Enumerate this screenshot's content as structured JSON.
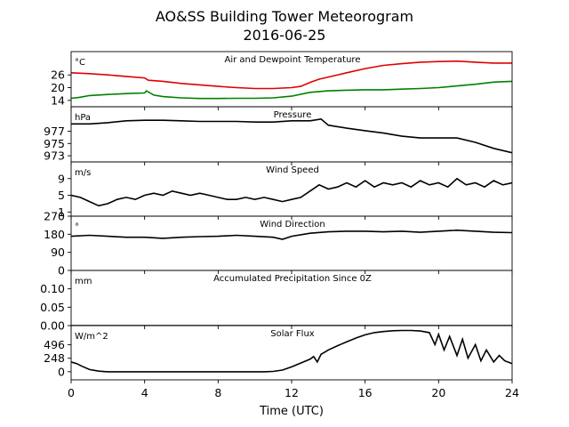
{
  "title": "AO&SS Building Tower Meteorogram",
  "subtitle": "2016-06-25",
  "chart_data": {
    "type": "line",
    "xlabel": "Time (UTC)",
    "xlim": [
      0,
      24
    ],
    "xticks": [
      0,
      4,
      8,
      12,
      16,
      20,
      24
    ],
    "panels": [
      {
        "title": "Air and Dewpoint Temperature",
        "unit": "°C",
        "ylim": [
          11,
          37
        ],
        "yticks": [
          14,
          20,
          26
        ],
        "series": [
          {
            "color": "#e00000",
            "x": [
              0,
              1,
              2,
              3,
              4,
              4.2,
              5,
              6,
              7,
              8,
              9,
              10,
              11,
              12,
              12.5,
              13,
              13.5,
              14,
              15,
              16,
              17,
              18,
              19,
              20,
              21,
              22,
              23,
              24
            ],
            "y": [
              27,
              26.6,
              26,
              25.3,
              24.6,
              23.5,
              23,
              22,
              21.3,
              20.6,
              20,
              19.6,
              19.6,
              20,
              20.6,
              22.5,
              24,
              25,
              27,
              29,
              30.5,
              31.3,
              32,
              32.3,
              32.5,
              32,
              31.6,
              31.6
            ]
          },
          {
            "color": "#008000",
            "x": [
              0,
              0.5,
              1,
              2,
              3,
              4,
              4.1,
              4.5,
              5,
              6,
              7,
              8,
              9,
              10,
              11,
              12,
              13,
              14,
              15,
              16,
              17,
              18,
              19,
              20,
              21,
              22,
              23,
              24
            ],
            "y": [
              15,
              15.5,
              16.3,
              16.8,
              17.2,
              17.5,
              18.5,
              16.5,
              15.8,
              15.2,
              14.9,
              14.9,
              15,
              15,
              15.2,
              16,
              17.8,
              18.5,
              18.8,
              19,
              19,
              19.3,
              19.6,
              20,
              20.8,
              21.6,
              22.6,
              23
            ]
          }
        ]
      },
      {
        "title": "Pressure",
        "unit": "hPa",
        "ylim": [
          972,
          981
        ],
        "yticks": [
          973,
          975,
          977
        ],
        "series": [
          {
            "color": "#000000",
            "x": [
              0,
              1,
              2,
              3,
              4,
              5,
              6,
              7,
              8,
              9,
              10,
              11,
              12,
              13,
              13.6,
              14,
              15,
              16,
              17,
              18,
              19,
              20,
              21,
              22,
              23,
              24
            ],
            "y": [
              978.2,
              978.2,
              978.4,
              978.7,
              978.8,
              978.8,
              978.7,
              978.6,
              978.6,
              978.6,
              978.5,
              978.5,
              978.7,
              978.7,
              979,
              978,
              977.5,
              977.1,
              976.7,
              976.2,
              975.9,
              975.9,
              975.9,
              975.2,
              974.2,
              973.5
            ]
          }
        ]
      },
      {
        "title": "Wind Speed",
        "unit": "m/s",
        "ylim": [
          0,
          13
        ],
        "yticks": [
          1,
          5,
          9
        ],
        "series": [
          {
            "color": "#000000",
            "x": [
              0,
              0.5,
              1,
              1.5,
              2,
              2.5,
              3,
              3.5,
              4,
              4.5,
              5,
              5.5,
              6,
              6.5,
              7,
              7.5,
              8,
              8.5,
              9,
              9.5,
              10,
              10.5,
              11,
              11.5,
              12,
              12.5,
              13,
              13.5,
              14,
              14.5,
              15,
              15.5,
              16,
              16.5,
              17,
              17.5,
              18,
              18.5,
              19,
              19.5,
              20,
              20.5,
              21,
              21.5,
              22,
              22.5,
              23,
              23.5,
              24
            ],
            "y": [
              5,
              4.5,
              3.5,
              2.5,
              3,
              4,
              4.5,
              4,
              5,
              5.5,
              5,
              6,
              5.5,
              5,
              5.5,
              5,
              4.5,
              4,
              4,
              4.5,
              4,
              4.5,
              4,
              3.5,
              4,
              4.5,
              6,
              7.5,
              6.5,
              7,
              8,
              7,
              8.5,
              7,
              8,
              7.5,
              8,
              7,
              8.5,
              7.5,
              8,
              7,
              9,
              7.5,
              8,
              7,
              8.5,
              7.5,
              8
            ]
          }
        ]
      },
      {
        "title": "Wind Direction",
        "unit": "°",
        "ylim": [
          0,
          270
        ],
        "yticks": [
          0,
          90,
          180,
          270
        ],
        "series": [
          {
            "color": "#000000",
            "x": [
              0,
              1,
              2,
              3,
              4,
              5,
              6,
              7,
              8,
              9,
              10,
              11,
              11.5,
              12,
              13,
              14,
              15,
              16,
              17,
              18,
              19,
              20,
              21,
              22,
              23,
              24
            ],
            "y": [
              170,
              175,
              170,
              165,
              165,
              160,
              165,
              168,
              170,
              175,
              170,
              165,
              155,
              170,
              185,
              192,
              195,
              195,
              192,
              195,
              190,
              195,
              200,
              195,
              190,
              188
            ]
          }
        ]
      },
      {
        "title": "Accumulated Precipitation Since 0Z",
        "unit": "mm",
        "ylim": [
          0,
          0.15
        ],
        "yticks": [
          0.0,
          0.05,
          0.1
        ],
        "ytick_labels": [
          "0.00",
          "0.05",
          "0.10"
        ],
        "series": [
          {
            "color": "#000000",
            "x": [
              0,
              24
            ],
            "y": [
              0,
              0
            ]
          }
        ]
      },
      {
        "title": "Solar Flux",
        "unit": "W/m^2",
        "ylim": [
          -150,
          850
        ],
        "yticks": [
          0,
          248,
          496
        ],
        "series": [
          {
            "color": "#000000",
            "x": [
              0,
              0.3,
              0.6,
              1,
              1.5,
              2,
              3,
              4,
              5,
              6,
              7,
              8,
              9,
              10,
              10.5,
              11,
              11.5,
              12,
              12.5,
              13,
              13.2,
              13.4,
              13.6,
              14,
              14.5,
              15,
              15.5,
              16,
              16.5,
              17,
              17.5,
              18,
              18.5,
              19,
              19.5,
              19.8,
              20,
              20.3,
              20.6,
              21,
              21.3,
              21.6,
              22,
              22.3,
              22.6,
              23,
              23.3,
              23.6,
              24
            ],
            "y": [
              180,
              150,
              100,
              40,
              10,
              0,
              0,
              0,
              0,
              0,
              0,
              0,
              0,
              0,
              0,
              5,
              30,
              90,
              160,
              230,
              280,
              180,
              320,
              400,
              480,
              550,
              620,
              680,
              720,
              740,
              755,
              760,
              760,
              750,
              720,
              500,
              690,
              400,
              650,
              300,
              600,
              250,
              500,
              200,
              400,
              180,
              300,
              200,
              150
            ]
          }
        ]
      }
    ]
  }
}
